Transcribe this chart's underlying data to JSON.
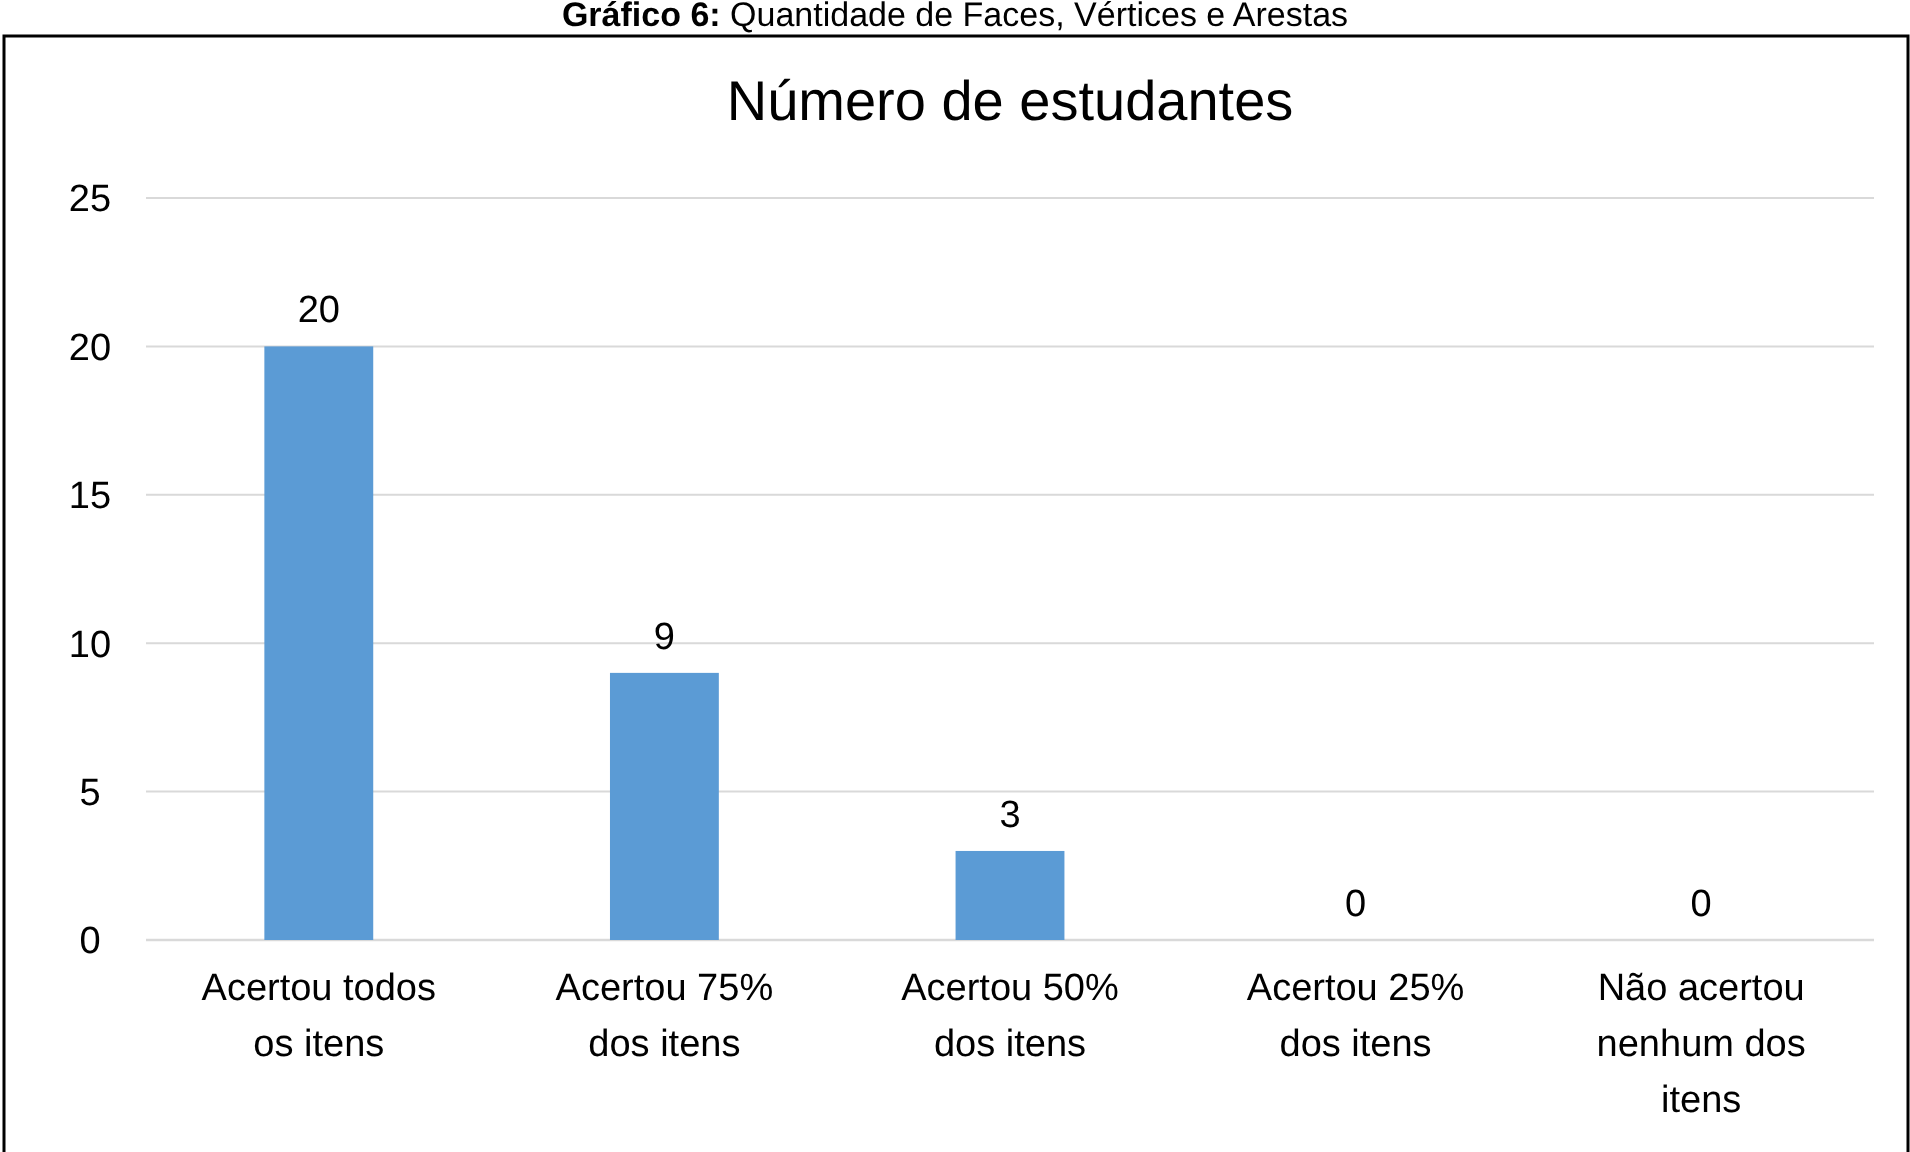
{
  "chart_data": {
    "type": "bar",
    "title": "Número de estudantes",
    "annotations": [
      "Gráfico 6: Quantidade de Faces, Vértices e Arestas"
    ],
    "categories": [
      "Acertou todos os itens",
      "Acertou 75% dos itens",
      "Acertou 50% dos itens",
      "Acertou 25% dos itens",
      "Não acertou nenhum dos itens"
    ],
    "values": [
      20,
      9,
      3,
      0,
      0
    ],
    "color": "#5b9bd5",
    "ylim": [
      0,
      25
    ],
    "yticks": [
      0,
      5,
      10,
      15,
      20,
      25
    ],
    "grid": "y",
    "data_labels": true
  }
}
